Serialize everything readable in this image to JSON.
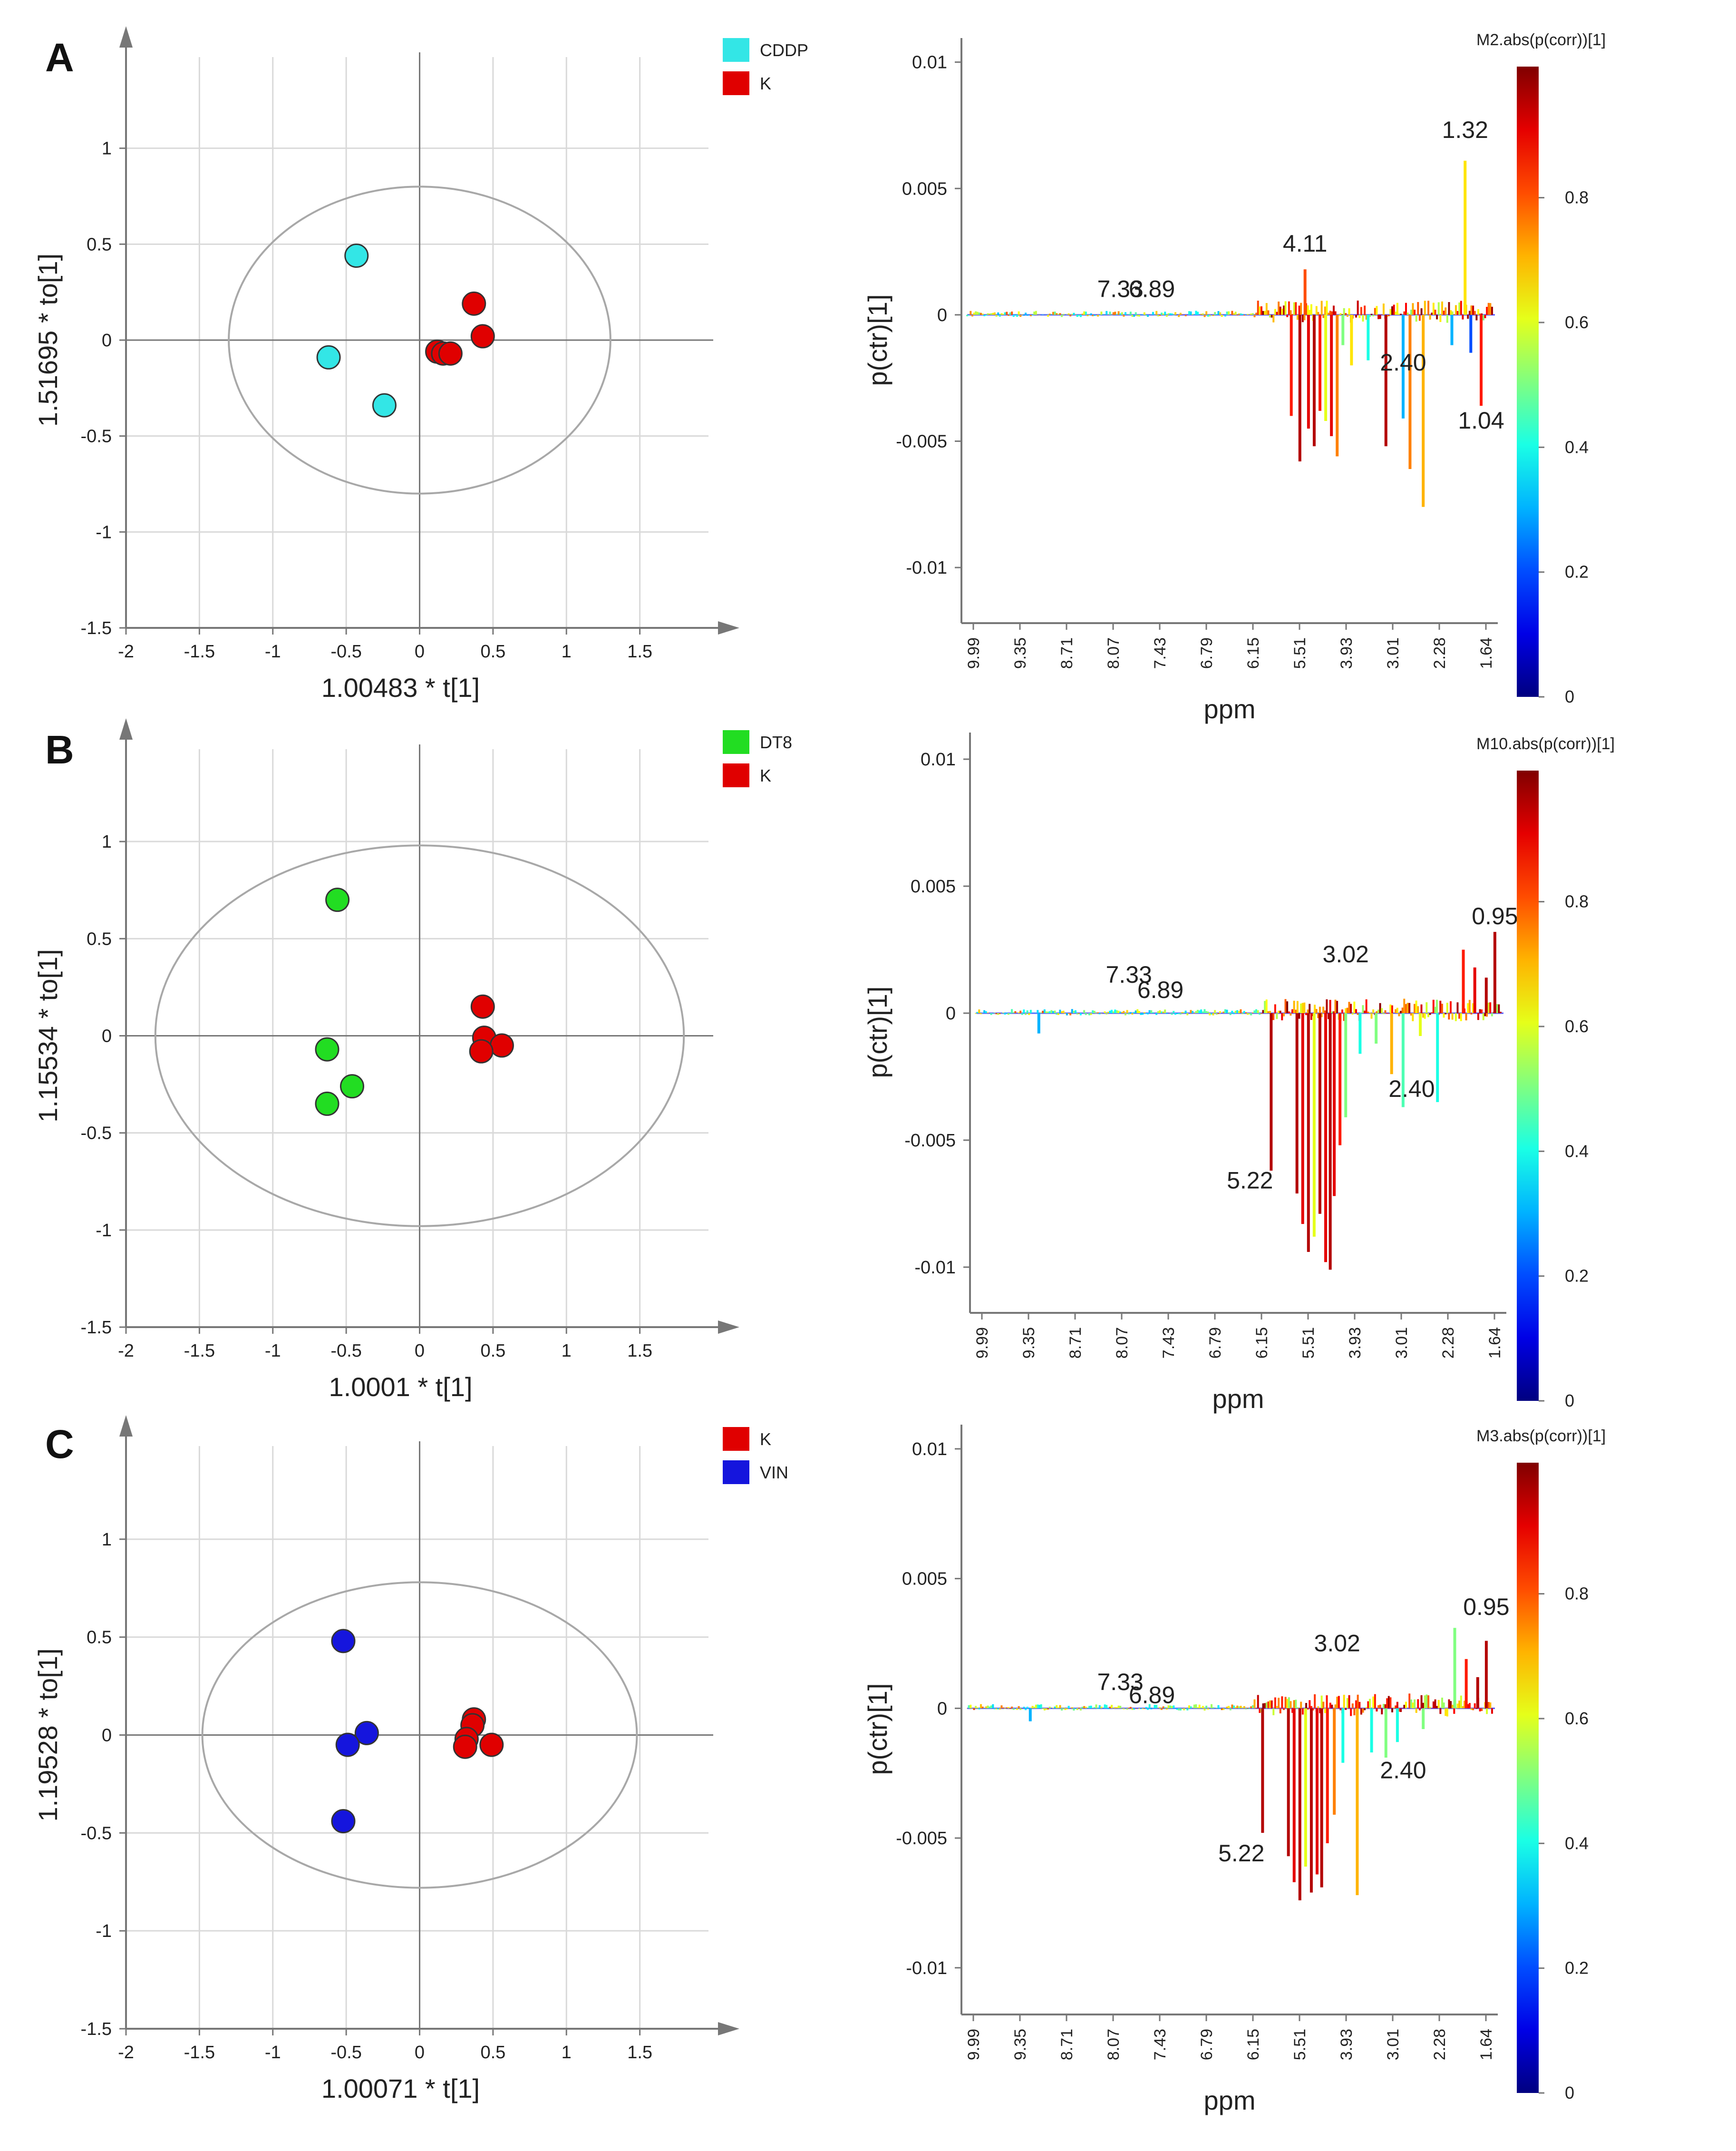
{
  "chart_data": [
    {
      "panel": "A",
      "type": "scatter",
      "title": "",
      "xlabel": "1.00483 * t[1]",
      "ylabel": "1.51695 * to[1]",
      "xlim": [
        -2,
        2
      ],
      "ylim": [
        -1.5,
        1.5
      ],
      "xticks": [
        -2,
        -1.5,
        -1,
        -0.5,
        0,
        0.5,
        1,
        1.5
      ],
      "yticks": [
        -1.5,
        -1,
        -0.5,
        0,
        0.5,
        1
      ],
      "xticklabels": [
        "-2",
        "-1.5",
        "-1",
        "-0.5",
        "0",
        "0.5",
        "1",
        "1.5"
      ],
      "yticklabels": [
        "-1.5",
        "-1",
        "-0.5",
        "0",
        "0.5",
        "1"
      ],
      "ellipse": {
        "rx": 1.3,
        "ry": 0.8
      },
      "legend": [
        "CDDP",
        "K"
      ],
      "series": [
        {
          "name": "CDDP",
          "color": "#33e6e6",
          "points": [
            [
              -0.43,
              0.44
            ],
            [
              -0.62,
              -0.09
            ],
            [
              -0.24,
              -0.34
            ]
          ]
        },
        {
          "name": "K",
          "color": "#e00000",
          "points": [
            [
              0.37,
              0.19
            ],
            [
              0.43,
              0.02
            ],
            [
              0.12,
              -0.06
            ],
            [
              0.16,
              -0.07
            ],
            [
              0.21,
              -0.07
            ]
          ]
        }
      ]
    },
    {
      "panel": "A",
      "type": "line",
      "title": "M2.abs(p(corr))[1]",
      "xlabel": "ppm",
      "ylabel": "p(ctr)[1]",
      "ylim": [
        -0.0122,
        0.0102
      ],
      "yticks": [
        -0.01,
        -0.005,
        0,
        0.005,
        0.01
      ],
      "yticklabels": [
        "-0.01",
        "-0.005",
        "0",
        "0.005",
        "0.01"
      ],
      "xticklabels": [
        "9.99",
        "9.35",
        "8.71",
        "8.07",
        "7.43",
        "6.79",
        "6.15",
        "5.51",
        "3.93",
        "3.01",
        "2.28",
        "1.64"
      ],
      "colorbar_ticks": [
        "0",
        "0.2",
        "0.4",
        "0.6",
        "0.8"
      ],
      "annotations": [
        {
          "text": "7.33",
          "x": 7.33,
          "y": 0.0007
        },
        {
          "text": "6.89",
          "x": 6.78,
          "y": 0.0007
        },
        {
          "text": "4.11",
          "x": 4.11,
          "y": 0.0025
        },
        {
          "text": "1.32",
          "x": 1.32,
          "y": 0.007
        },
        {
          "text": "2.40",
          "x": 2.4,
          "y": -0.0022
        },
        {
          "text": "1.04",
          "x": 1.04,
          "y": -0.0045
        }
      ],
      "peaks": [
        [
          4.35,
          -0.004,
          0.85
        ],
        [
          4.2,
          -0.0058,
          0.95
        ],
        [
          4.11,
          0.0018,
          0.8
        ],
        [
          4.05,
          -0.0045,
          0.9
        ],
        [
          3.95,
          -0.0052,
          0.95
        ],
        [
          3.85,
          -0.0038,
          0.85
        ],
        [
          3.75,
          -0.0042,
          0.6
        ],
        [
          3.65,
          -0.0048,
          0.9
        ],
        [
          3.55,
          -0.0056,
          0.75
        ],
        [
          3.45,
          -0.0012,
          0.5
        ],
        [
          3.3,
          -0.002,
          0.65
        ],
        [
          3.01,
          -0.0018,
          0.4
        ],
        [
          2.7,
          -0.0052,
          0.95
        ],
        [
          2.4,
          -0.0041,
          0.3
        ],
        [
          2.28,
          -0.0061,
          0.75
        ],
        [
          2.05,
          -0.0076,
          0.7
        ],
        [
          1.55,
          -0.0012,
          0.3
        ],
        [
          1.32,
          0.0061,
          0.65
        ],
        [
          1.22,
          -0.0015,
          0.2
        ],
        [
          1.04,
          -0.0036,
          0.85
        ]
      ]
    },
    {
      "panel": "B",
      "type": "scatter",
      "title": "",
      "xlabel": "1.0001 * t[1]",
      "ylabel": "1.15534 * to[1]",
      "xlim": [
        -2,
        2
      ],
      "ylim": [
        -1.5,
        1.5
      ],
      "xticks": [
        -2,
        -1.5,
        -1,
        -0.5,
        0,
        0.5,
        1,
        1.5
      ],
      "yticks": [
        -1.5,
        -1,
        -0.5,
        0,
        0.5,
        1
      ],
      "xticklabels": [
        "-2",
        "-1.5",
        "-1",
        "-0.5",
        "0",
        "0.5",
        "1",
        "1.5"
      ],
      "yticklabels": [
        "-1.5",
        "-1",
        "-0.5",
        "0",
        "0.5",
        "1"
      ],
      "ellipse": {
        "rx": 1.8,
        "ry": 0.98
      },
      "legend": [
        "DT8",
        "K"
      ],
      "series": [
        {
          "name": "DT8",
          "color": "#22dd22",
          "points": [
            [
              -0.56,
              0.7
            ],
            [
              -0.63,
              -0.07
            ],
            [
              -0.46,
              -0.26
            ],
            [
              -0.63,
              -0.35
            ]
          ]
        },
        {
          "name": "K",
          "color": "#e00000",
          "points": [
            [
              0.43,
              0.15
            ],
            [
              0.44,
              -0.01
            ],
            [
              0.56,
              -0.05
            ],
            [
              0.42,
              -0.08
            ]
          ]
        }
      ]
    },
    {
      "panel": "B",
      "type": "line",
      "title": "M10.abs(p(corr))[1]",
      "xlabel": "ppm",
      "ylabel": "p(ctr)[1]",
      "ylim": [
        -0.0118,
        0.0103
      ],
      "yticks": [
        -0.01,
        -0.005,
        0,
        0.005,
        0.01
      ],
      "yticklabels": [
        "-0.01",
        "-0.005",
        "0",
        "0.005",
        "0.01"
      ],
      "xticklabels": [
        "9.99",
        "9.35",
        "8.71",
        "8.07",
        "7.43",
        "6.79",
        "6.15",
        "5.51",
        "3.93",
        "3.01",
        "2.28",
        "1.64"
      ],
      "colorbar_ticks": [
        "0",
        "0.2",
        "0.4",
        "0.6",
        "0.8"
      ],
      "annotations": [
        {
          "text": "7.33",
          "x": 7.33,
          "y": 0.0012
        },
        {
          "text": "6.89",
          "x": 6.78,
          "y": 0.0006
        },
        {
          "text": "3.02",
          "x": 3.55,
          "y": 0.002
        },
        {
          "text": "0.95",
          "x": 0.95,
          "y": 0.0035
        },
        {
          "text": "2.40",
          "x": 2.4,
          "y": -0.0033
        },
        {
          "text": "5.22",
          "x": 5.22,
          "y": -0.0069
        }
      ],
      "peaks": [
        [
          4.85,
          -0.0062,
          0.95
        ],
        [
          4.4,
          -0.0071,
          0.95
        ],
        [
          4.3,
          -0.0083,
          0.9
        ],
        [
          4.2,
          -0.0094,
          0.95
        ],
        [
          4.1,
          -0.0088,
          0.6
        ],
        [
          4.0,
          -0.0079,
          0.95
        ],
        [
          3.9,
          -0.0098,
          0.9
        ],
        [
          3.82,
          -0.0101,
          0.95
        ],
        [
          3.75,
          -0.0072,
          0.9
        ],
        [
          3.65,
          -0.0052,
          0.85
        ],
        [
          3.55,
          -0.0041,
          0.5
        ],
        [
          3.3,
          -0.0016,
          0.4
        ],
        [
          3.02,
          -0.0012,
          0.5
        ],
        [
          2.75,
          -0.0024,
          0.7
        ],
        [
          2.55,
          -0.0037,
          0.45
        ],
        [
          2.25,
          -0.0009,
          0.6
        ],
        [
          1.95,
          -0.0035,
          0.4
        ],
        [
          1.5,
          0.0025,
          0.85
        ],
        [
          1.3,
          0.0018,
          0.9
        ],
        [
          1.1,
          0.0014,
          0.95
        ],
        [
          0.95,
          0.0032,
          0.95
        ],
        [
          8.9,
          -0.0008,
          0.3
        ]
      ]
    },
    {
      "panel": "C",
      "type": "scatter",
      "title": "",
      "xlabel": "1.00071 * t[1]",
      "ylabel": "1.19528 * to[1]",
      "xlim": [
        -2,
        2
      ],
      "ylim": [
        -1.5,
        1.5
      ],
      "xticks": [
        -2,
        -1.5,
        -1,
        -0.5,
        0,
        0.5,
        1,
        1.5
      ],
      "yticks": [
        -1.5,
        -1,
        -0.5,
        0,
        0.5,
        1
      ],
      "xticklabels": [
        "-2",
        "-1.5",
        "-1",
        "-0.5",
        "0",
        "0.5",
        "1",
        "1.5"
      ],
      "yticklabels": [
        "-1.5",
        "-1",
        "-0.5",
        "0",
        "0.5",
        "1"
      ],
      "ellipse": {
        "rx": 1.48,
        "ry": 0.78
      },
      "legend": [
        "K",
        "VIN"
      ],
      "series": [
        {
          "name": "K",
          "color": "#e00000",
          "points": [
            [
              0.37,
              0.08
            ],
            [
              0.36,
              0.05
            ],
            [
              0.32,
              -0.02
            ],
            [
              0.49,
              -0.05
            ],
            [
              0.31,
              -0.06
            ]
          ]
        },
        {
          "name": "VIN",
          "color": "#1515dd",
          "points": [
            [
              -0.52,
              0.48
            ],
            [
              -0.36,
              0.01
            ],
            [
              -0.49,
              -0.05
            ],
            [
              -0.52,
              -0.44
            ]
          ]
        }
      ]
    },
    {
      "panel": "C",
      "type": "line",
      "title": "M3.abs(p(corr))[1]",
      "xlabel": "ppm",
      "ylabel": "p(ctr)[1]",
      "ylim": [
        -0.0118,
        0.0102
      ],
      "yticks": [
        -0.01,
        -0.005,
        0,
        0.005,
        0.01
      ],
      "yticklabels": [
        "-0.01",
        "-0.005",
        "0",
        "0.005",
        "0.01"
      ],
      "xticklabels": [
        "9.99",
        "9.35",
        "8.71",
        "8.07",
        "7.43",
        "6.79",
        "6.15",
        "5.51",
        "3.93",
        "3.01",
        "2.28",
        "1.64"
      ],
      "colorbar_ticks": [
        "0",
        "0.2",
        "0.4",
        "0.6",
        "0.8"
      ],
      "annotations": [
        {
          "text": "7.33",
          "x": 7.33,
          "y": 0.0007
        },
        {
          "text": "6.89",
          "x": 6.78,
          "y": 0.0002
        },
        {
          "text": "3.02",
          "x": 3.55,
          "y": 0.0022
        },
        {
          "text": "0.95",
          "x": 0.95,
          "y": 0.0036
        },
        {
          "text": "2.40",
          "x": 2.4,
          "y": -0.0027
        },
        {
          "text": "5.22",
          "x": 5.22,
          "y": -0.0059
        }
      ],
      "peaks": [
        [
          4.85,
          -0.0048,
          0.95
        ],
        [
          4.4,
          -0.0057,
          0.95
        ],
        [
          4.3,
          -0.0067,
          0.9
        ],
        [
          4.2,
          -0.0074,
          0.95
        ],
        [
          4.1,
          -0.0061,
          0.6
        ],
        [
          4.0,
          -0.0071,
          0.95
        ],
        [
          3.9,
          -0.0064,
          0.9
        ],
        [
          3.82,
          -0.0069,
          0.95
        ],
        [
          3.72,
          -0.0052,
          0.85
        ],
        [
          3.6,
          -0.0041,
          0.75
        ],
        [
          3.45,
          -0.0021,
          0.4
        ],
        [
          3.2,
          -0.0072,
          0.7
        ],
        [
          2.95,
          -0.0017,
          0.4
        ],
        [
          2.7,
          -0.0019,
          0.5
        ],
        [
          2.5,
          -0.0013,
          0.4
        ],
        [
          2.05,
          -0.0008,
          0.5
        ],
        [
          1.5,
          0.0031,
          0.5
        ],
        [
          1.3,
          0.0019,
          0.85
        ],
        [
          1.1,
          0.0012,
          0.95
        ],
        [
          0.95,
          0.0026,
          0.95
        ],
        [
          8.9,
          -0.0005,
          0.3
        ]
      ]
    }
  ],
  "panel_labels": [
    "A",
    "B",
    "C"
  ],
  "colors": {
    "grid": "#d9d9d9",
    "axis": "#777777",
    "ellipse": "#a8a8a8",
    "text": "#222222"
  }
}
